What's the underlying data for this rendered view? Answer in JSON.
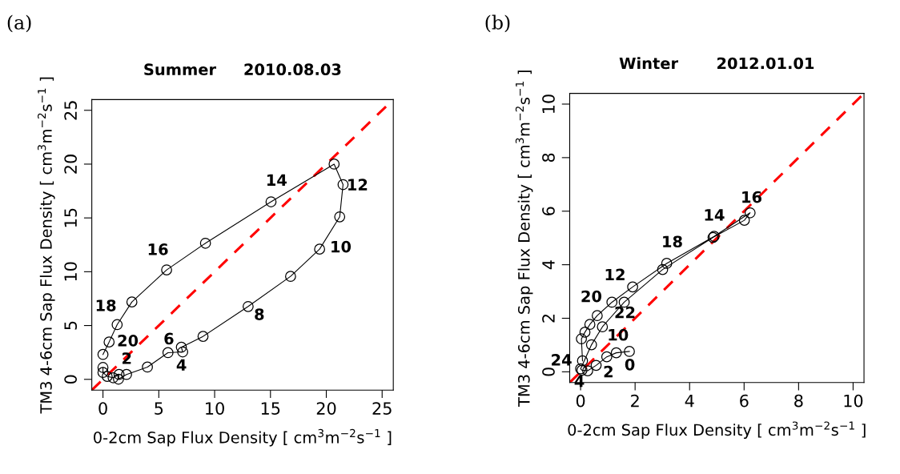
{
  "chart_data": [
    {
      "type": "line",
      "title": "Summer     2010.08.03",
      "xlabel": "0-2cm Sap Flux Density [ cm$^{3}$m$^{−2}$s$^{−1}$ ]",
      "ylabel": "TM3 4-6cm Sap Flux Density [ cm$^{3}$m$^{−2}$s$^{−1}$ ]",
      "xlim": [
        -1,
        26
      ],
      "ylim": [
        -1,
        26
      ],
      "xticks": [
        0,
        5,
        10,
        15,
        20,
        25
      ],
      "yticks": [
        0,
        5,
        10,
        15,
        20,
        25
      ],
      "grid": false,
      "legend": false,
      "series": [
        {
          "color": "#000000",
          "marker": "circle",
          "line_style": "solid",
          "x": [
            0,
            0,
            0.38,
            0.91,
            1.44,
            1.39,
            2.11,
            3.98,
            5.82,
            7.14,
            7.02,
            8.96,
            13.0,
            16.8,
            19.4,
            21.2,
            21.5,
            20.7,
            15.05,
            9.18,
            5.7,
            2.59,
            1.27,
            0.55,
            0
          ],
          "values": [
            1.1,
            0.64,
            0.27,
            0.15,
            0.45,
            0.02,
            0.45,
            1.14,
            2.48,
            2.55,
            2.98,
            3.99,
            6.77,
            9.57,
            12.1,
            15.1,
            18.1,
            20.0,
            16.5,
            12.65,
            10.17,
            7.19,
            5.08,
            3.47,
            2.31
          ]
        },
        {
          "color": "#ff0000",
          "marker": "none",
          "line_style": "dashed",
          "x": [
            -1,
            26
          ],
          "values": [
            -1,
            26
          ]
        }
      ],
      "annotations": [
        "(a)",
        {
          "text": "2",
          "x": 1.39,
          "y": 0.02
        },
        {
          "text": "4",
          "x": 7.14,
          "y": 2.55
        },
        {
          "text": "6",
          "x": 7.02,
          "y": 2.98
        },
        {
          "text": "8",
          "x": 13.0,
          "y": 6.77
        },
        {
          "text": "10",
          "x": 19.4,
          "y": 12.1
        },
        {
          "text": "12",
          "x": 21.5,
          "y": 18.1
        },
        {
          "text": "14",
          "x": 15.05,
          "y": 16.5
        },
        {
          "text": "16",
          "x": 5.7,
          "y": 10.17
        },
        {
          "text": "18",
          "x": 1.27,
          "y": 5.08
        },
        {
          "text": "20",
          "x": 0,
          "y": 2.31
        }
      ]
    },
    {
      "type": "line",
      "title": "Winter       2012.01.01",
      "xlabel": "0-2cm Sap Flux Density [ cm$^{3}$m$^{−2}$s$^{−1}$ ]",
      "ylabel": "TM3 4-6cm Sap Flux Density [ cm$^{3}$m$^{−2}$s$^{−1}$ ]",
      "xlim": [
        -0.4,
        10.4
      ],
      "ylim": [
        -0.4,
        10.4
      ],
      "xticks": [
        0,
        2,
        4,
        6,
        8,
        10
      ],
      "yticks": [
        0,
        2,
        4,
        6,
        8,
        10
      ],
      "grid": false,
      "legend": false,
      "series": [
        {
          "color": "#000000",
          "marker": "circle",
          "line_style": "solid",
          "x": [
            1.79,
            1.31,
            0.96,
            0.57,
            0.26,
            0.05,
            0,
            0.4,
            0.8,
            1.6,
            3.01,
            4.86,
            6.01,
            6.22,
            4.9,
            3.16,
            1.91,
            1.15,
            0.61,
            0.34,
            0.16,
            0.03,
            0.07
          ],
          "values": [
            0.76,
            0.71,
            0.56,
            0.24,
            0.04,
            0.06,
            0.11,
            1.01,
            1.68,
            2.6,
            3.82,
            5.02,
            5.66,
            5.94,
            5.06,
            4.05,
            3.17,
            2.6,
            2.1,
            1.77,
            1.48,
            1.23,
            0.41
          ]
        },
        {
          "color": "#ff0000",
          "marker": "none",
          "line_style": "dashed",
          "x": [
            -0.4,
            10.4
          ],
          "values": [
            -0.4,
            10.4
          ]
        }
      ],
      "annotations": [
        "(b)",
        {
          "text": "0",
          "x": 1.79,
          "y": 0.76
        },
        {
          "text": "2",
          "x": 0.57,
          "y": 0.24
        },
        {
          "text": "4",
          "x": 0.26,
          "y": 0.04
        },
        {
          "text": "10",
          "x": 0.4,
          "y": 1.01
        },
        {
          "text": "12",
          "x": 1.6,
          "y": 2.6
        },
        {
          "text": "14",
          "x": 4.86,
          "y": 5.02
        },
        {
          "text": "16",
          "x": 6.22,
          "y": 5.94
        },
        {
          "text": "18",
          "x": 3.16,
          "y": 4.05
        },
        {
          "text": "20",
          "x": 1.15,
          "y": 2.6
        },
        {
          "text": "22",
          "x": 0.61,
          "y": 2.1
        },
        {
          "text": "24",
          "x": 0.07,
          "y": 0.41
        }
      ]
    }
  ]
}
